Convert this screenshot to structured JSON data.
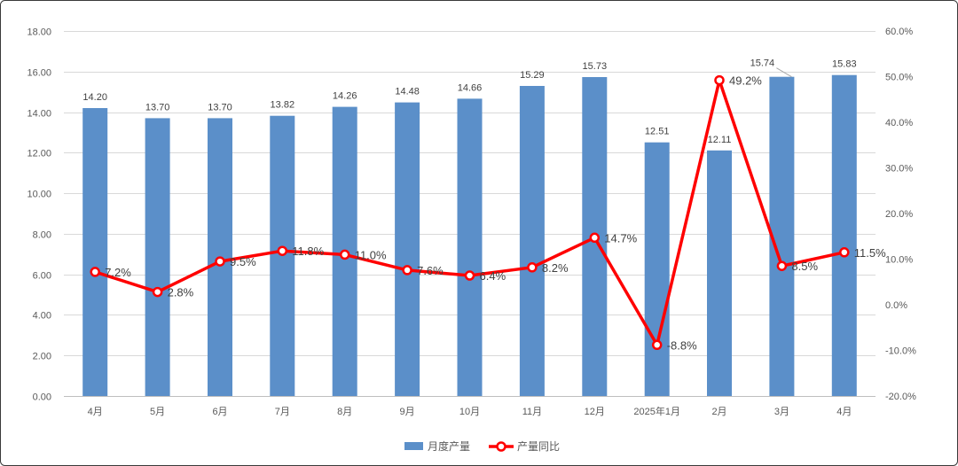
{
  "chart_data": {
    "type": "bar",
    "categories": [
      "4月",
      "5月",
      "6月",
      "7月",
      "8月",
      "9月",
      "10月",
      "11月",
      "12月",
      "2025年1月",
      "2月",
      "3月",
      "4月"
    ],
    "series": [
      {
        "name": "月度产量",
        "type": "bar",
        "axis": "left",
        "color": "#5B8FC9",
        "values": [
          14.2,
          13.7,
          13.7,
          13.82,
          14.26,
          14.48,
          14.66,
          15.29,
          15.73,
          12.51,
          12.11,
          15.74,
          15.83
        ],
        "labels": [
          "14.20",
          "13.70",
          "13.70",
          "13.82",
          "14.26",
          "14.48",
          "14.66",
          "15.29",
          "15.73",
          "12.51",
          "12.11",
          "15.74",
          "15.83"
        ]
      },
      {
        "name": "产量同比",
        "type": "line",
        "axis": "right",
        "color": "#FF0000",
        "values": [
          7.2,
          2.8,
          9.5,
          11.8,
          11.0,
          7.6,
          6.4,
          8.2,
          14.7,
          -8.8,
          49.2,
          8.5,
          11.5
        ],
        "labels": [
          "7.2%",
          "2.8%",
          "9.5%",
          "11.8%",
          "11.0%",
          "7.6%",
          "6.4%",
          "8.2%",
          "14.7%",
          "-8.8%",
          "49.2%",
          "8.5%",
          "11.5%"
        ]
      }
    ],
    "y_left": {
      "min": 0,
      "max": 18,
      "step": 2,
      "ticks": [
        "0.00",
        "2.00",
        "4.00",
        "6.00",
        "8.00",
        "10.00",
        "12.00",
        "14.00",
        "16.00",
        "18.00"
      ]
    },
    "y_right": {
      "min": -20,
      "max": 60,
      "step": 10,
      "ticks": [
        "-20.0%",
        "-10.0%",
        "0.0%",
        "10.0%",
        "20.0%",
        "30.0%",
        "40.0%",
        "50.0%",
        "60.0%"
      ]
    },
    "grid": true,
    "legend_position": "bottom"
  }
}
